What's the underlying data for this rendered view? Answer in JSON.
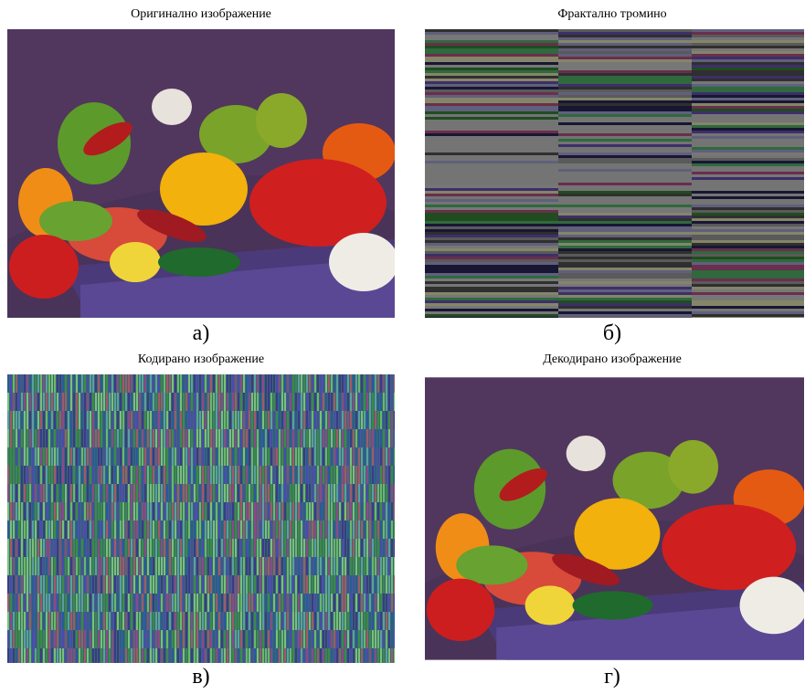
{
  "panels": [
    {
      "title": "Оригинално изображение",
      "caption": "а)"
    },
    {
      "title": "Фрактално тромино",
      "caption": "б)"
    },
    {
      "title": "Кодирано изображение",
      "caption": "в)"
    },
    {
      "title": "Декодирано изображение",
      "caption": "г)"
    }
  ]
}
